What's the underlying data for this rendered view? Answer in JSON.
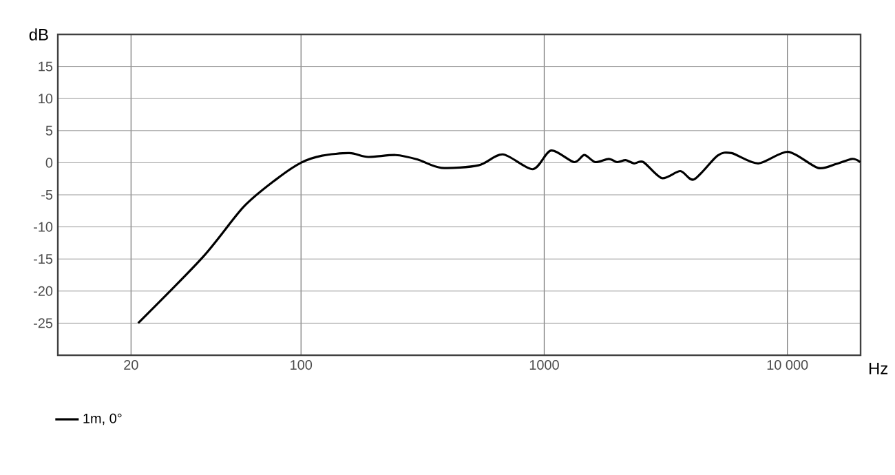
{
  "chart_data": {
    "type": "line",
    "xlabel": "Hz",
    "ylabel": "dB",
    "log": "x",
    "grid": true,
    "legend": "bottom left",
    "marker": "none",
    "line_style": "solid",
    "xlim": [
      10,
      20000
    ],
    "ylim": [
      -30,
      20
    ],
    "xticks": [
      20,
      100,
      1000,
      {
        "value": 10000,
        "label": "10 000"
      }
    ],
    "yticks": [
      -25,
      -20,
      -15,
      -10,
      -5,
      0,
      5,
      10,
      15
    ],
    "series": [
      {
        "name": "1m, 0°",
        "color": "#000000",
        "x": [
          21.4,
          39.5,
          58,
          79,
          100,
          122,
          158,
          189,
          245,
          302,
          378,
          537,
          676,
          898,
          1067,
          1327,
          1462,
          1622,
          1842,
          1996,
          2163,
          2343,
          2558,
          3048,
          3630,
          4130,
          5160,
          5890,
          7590,
          10070,
          13340,
          15850,
          18460,
          19950
        ],
        "values": [
          -25,
          -14.7,
          -6.9,
          -2.6,
          0,
          1.1,
          1.5,
          0.9,
          1.2,
          0.5,
          -0.8,
          -0.4,
          1.3,
          -1.0,
          1.9,
          0.1,
          1.2,
          0.1,
          0.6,
          0.1,
          0.4,
          -0.1,
          0.1,
          -2.4,
          -1.3,
          -2.6,
          1.1,
          1.5,
          -0.1,
          1.7,
          -0.8,
          -0.2,
          0.6,
          0.1
        ]
      }
    ]
  }
}
